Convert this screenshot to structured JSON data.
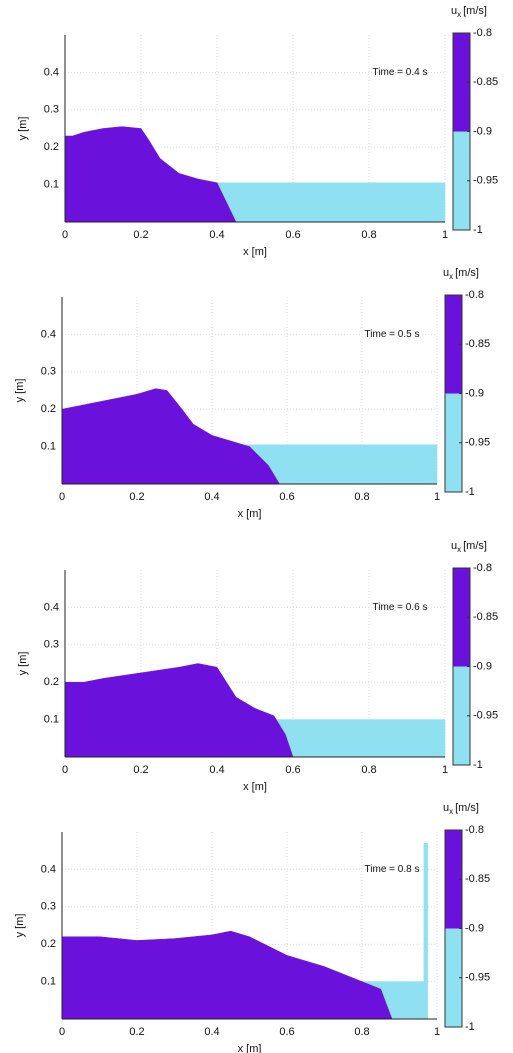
{
  "chart_data": [
    {
      "type": "area",
      "annotation": "Time = 0.4 s",
      "xlabel": "x [m]",
      "ylabel": "y [m]",
      "xlim": [
        0,
        1
      ],
      "ylim": [
        0,
        0.5
      ],
      "xticks": [
        0,
        0.2,
        0.4,
        0.6,
        0.8,
        1
      ],
      "yticks": [
        0.1,
        0.2,
        0.3,
        0.4
      ],
      "grid": true,
      "series": [
        {
          "color": "#8fe0f0",
          "x": [
            0.4,
            1
          ],
          "values": [
            0.105,
            0.105
          ]
        },
        {
          "color": "#6a12dc",
          "x": [
            0,
            0.02,
            0.05,
            0.1,
            0.15,
            0.2,
            0.22,
            0.25,
            0.3,
            0.35,
            0.4,
            0.45
          ],
          "values": [
            0.23,
            0.23,
            0.24,
            0.25,
            0.255,
            0.25,
            0.22,
            0.17,
            0.13,
            0.115,
            0.105,
            0
          ]
        }
      ],
      "colorbar": {
        "label": {
          "symbol": "u",
          "subscript": "x",
          "unit": "[m/s]"
        },
        "clim": [
          -1,
          -0.8
        ],
        "cticks": [
          -1,
          -0.95,
          -0.9,
          -0.85,
          -0.8
        ],
        "levels": [
          {
            "from": -1,
            "to": -0.9,
            "color": "#8fe0f0"
          },
          {
            "from": -0.9,
            "to": -0.8,
            "color": "#6a12dc"
          }
        ]
      }
    },
    {
      "type": "area",
      "annotation": "Time = 0.5 s",
      "xlabel": "x [m]",
      "ylabel": "y [m]",
      "xlim": [
        0,
        1
      ],
      "ylim": [
        0,
        0.5
      ],
      "xticks": [
        0,
        0.2,
        0.4,
        0.6,
        0.8,
        1
      ],
      "yticks": [
        0.1,
        0.2,
        0.3,
        0.4
      ],
      "grid": true,
      "series": [
        {
          "color": "#8fe0f0",
          "x": [
            0.47,
            1
          ],
          "values": [
            0.105,
            0.105
          ]
        },
        {
          "color": "#6a12dc",
          "x": [
            0,
            0.05,
            0.1,
            0.2,
            0.25,
            0.28,
            0.32,
            0.35,
            0.4,
            0.45,
            0.5,
            0.55,
            0.58
          ],
          "values": [
            0.2,
            0.21,
            0.22,
            0.24,
            0.255,
            0.25,
            0.2,
            0.16,
            0.13,
            0.115,
            0.1,
            0.05,
            0
          ]
        }
      ],
      "colorbar": {
        "label": {
          "symbol": "u",
          "subscript": "x",
          "unit": "[m/s]"
        },
        "clim": [
          -1,
          -0.8
        ],
        "cticks": [
          -1,
          -0.95,
          -0.9,
          -0.85,
          -0.8
        ],
        "levels": [
          {
            "from": -1,
            "to": -0.9,
            "color": "#8fe0f0"
          },
          {
            "from": -0.9,
            "to": -0.8,
            "color": "#6a12dc"
          }
        ]
      }
    },
    {
      "type": "area",
      "annotation": "Time = 0.6 s",
      "xlabel": "x [m]",
      "ylabel": "y [m]",
      "xlim": [
        0,
        1
      ],
      "ylim": [
        0,
        0.5
      ],
      "xticks": [
        0,
        0.2,
        0.4,
        0.6,
        0.8,
        1
      ],
      "yticks": [
        0.1,
        0.2,
        0.3,
        0.4
      ],
      "grid": true,
      "series": [
        {
          "color": "#8fe0f0",
          "x": [
            0.55,
            1
          ],
          "values": [
            0.1,
            0.1
          ]
        },
        {
          "color": "#6a12dc",
          "x": [
            0,
            0.05,
            0.1,
            0.2,
            0.3,
            0.35,
            0.4,
            0.45,
            0.5,
            0.55,
            0.58,
            0.6
          ],
          "values": [
            0.2,
            0.2,
            0.21,
            0.225,
            0.24,
            0.25,
            0.24,
            0.16,
            0.13,
            0.11,
            0.06,
            0
          ]
        }
      ],
      "colorbar": {
        "label": {
          "symbol": "u",
          "subscript": "x",
          "unit": "[m/s]"
        },
        "clim": [
          -1,
          -0.8
        ],
        "cticks": [
          -1,
          -0.95,
          -0.9,
          -0.85,
          -0.8
        ],
        "levels": [
          {
            "from": -1,
            "to": -0.9,
            "color": "#8fe0f0"
          },
          {
            "from": -0.9,
            "to": -0.8,
            "color": "#6a12dc"
          }
        ]
      }
    },
    {
      "type": "area",
      "annotation": "Time = 0.8 s",
      "xlabel": "x [m]",
      "ylabel": "y [m]",
      "xlim": [
        0,
        1
      ],
      "ylim": [
        0,
        0.5
      ],
      "xticks": [
        0,
        0.2,
        0.4,
        0.6,
        0.8,
        1
      ],
      "yticks": [
        0.1,
        0.2,
        0.3,
        0.4
      ],
      "grid": true,
      "series": [
        {
          "color": "#8fe0f0",
          "x": [
            0.75,
            0.97
          ],
          "values": [
            0.1,
            0.1
          ]
        },
        {
          "color": "#8fe0f0",
          "x": [
            0.965,
            0.975
          ],
          "values": [
            0.47,
            0.47
          ]
        },
        {
          "color": "#6a12dc",
          "x": [
            0,
            0.1,
            0.2,
            0.3,
            0.4,
            0.45,
            0.5,
            0.6,
            0.7,
            0.75,
            0.8,
            0.85,
            0.88
          ],
          "values": [
            0.22,
            0.22,
            0.21,
            0.215,
            0.225,
            0.235,
            0.22,
            0.17,
            0.14,
            0.12,
            0.1,
            0.08,
            0
          ]
        }
      ],
      "colorbar": {
        "label": {
          "symbol": "u",
          "subscript": "x",
          "unit": "[m/s]"
        },
        "clim": [
          -1,
          -0.8
        ],
        "cticks": [
          -1,
          -0.95,
          -0.9,
          -0.85,
          -0.8
        ],
        "levels": [
          {
            "from": -1,
            "to": -0.9,
            "color": "#8fe0f0"
          },
          {
            "from": -0.9,
            "to": -0.8,
            "color": "#6a12dc"
          }
        ]
      }
    }
  ]
}
